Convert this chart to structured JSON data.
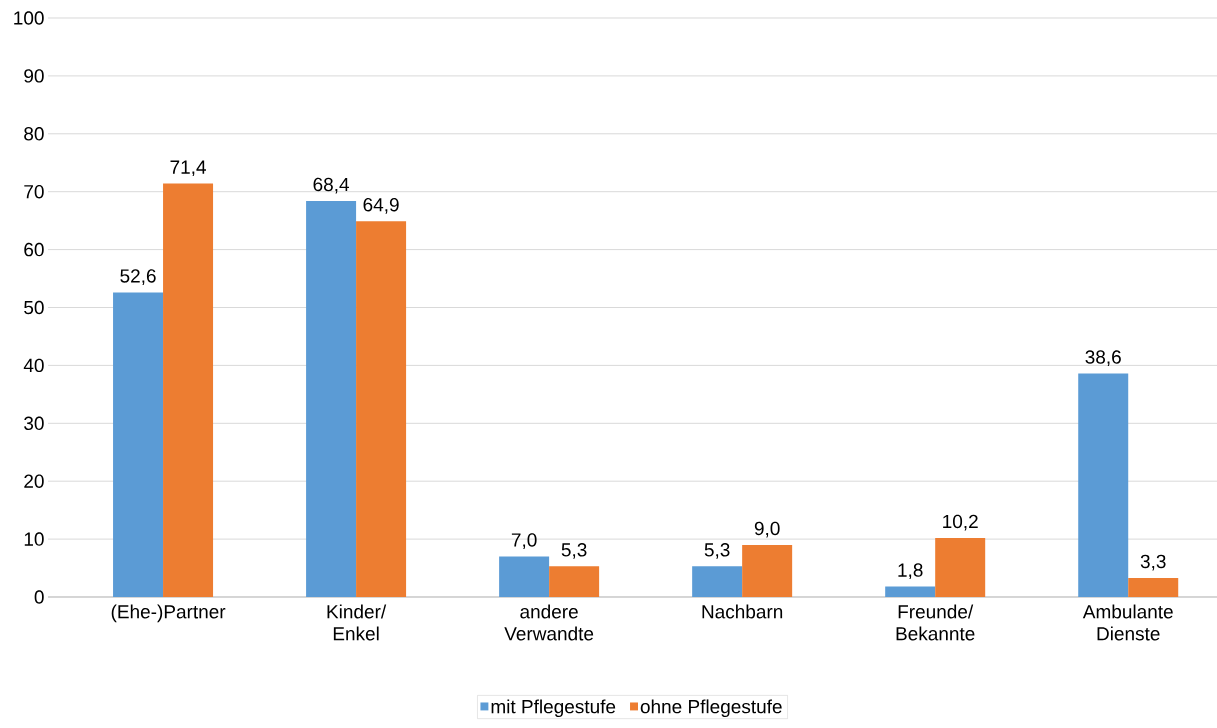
{
  "chart_data": {
    "type": "bar",
    "categories": [
      "(Ehe-)Partner",
      "Kinder/ Enkel",
      "andere Verwandte",
      "Nachbarn",
      "Freunde/ Bekannte",
      "Ambulante Dienste"
    ],
    "series": [
      {
        "name": "mit Pflegestufe",
        "color": "#5b9bd5",
        "values": [
          52.6,
          68.4,
          7.0,
          5.3,
          1.8,
          38.6
        ],
        "value_labels": [
          "52,6",
          "68,4",
          "7,0",
          "5,3",
          "1,8",
          "38,6"
        ]
      },
      {
        "name": "ohne Pflegestufe",
        "color": "#ed7d31",
        "values": [
          71.4,
          64.9,
          5.3,
          9.0,
          10.2,
          3.3
        ],
        "value_labels": [
          "71,4",
          "64,9",
          "5,3",
          "9,0",
          "10,2",
          "3,3"
        ]
      }
    ],
    "ylim": [
      0,
      100
    ],
    "yticks": [
      0,
      10,
      20,
      30,
      40,
      50,
      60,
      70,
      80,
      90,
      100
    ],
    "grid": "y",
    "legend": "bottom"
  }
}
